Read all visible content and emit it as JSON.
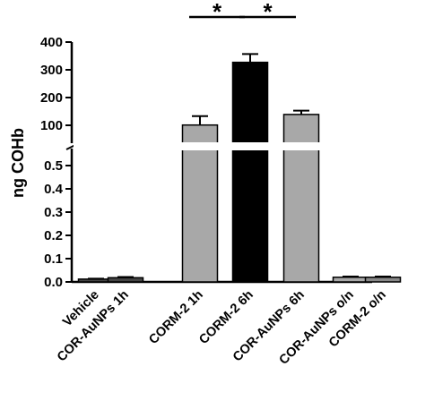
{
  "chart_data": {
    "type": "bar",
    "ylabel": "ng COHb",
    "categories": [
      "Vehicle",
      "COR-AuNPs 1h",
      "CORM-2 1h",
      "CORM-2 6h",
      "COR-AuNPs 6h",
      "COR-AuNPs o/n",
      "CORM-2 o/n"
    ],
    "values": [
      0.012,
      0.018,
      101,
      327,
      139,
      0.02,
      0.02
    ],
    "errors": [
      0.002,
      0.003,
      32,
      30,
      14,
      0.003,
      0.003
    ],
    "bar_colors": [
      "#444444",
      "#444444",
      "#a8a8a8",
      "#000000",
      "#a8a8a8",
      "#a8a8a8",
      "#888888"
    ],
    "axis_segments": [
      {
        "range": [
          0,
          0.5
        ],
        "ticks": [
          "0.0",
          "0.1",
          "0.2",
          "0.3",
          "0.4",
          "0.5"
        ]
      },
      {
        "range": [
          100,
          400
        ],
        "ticks": [
          "100",
          "200",
          "300",
          "400"
        ]
      }
    ],
    "significance": [
      {
        "from": 2,
        "to": 3,
        "label": "*"
      },
      {
        "from": 3,
        "to": 4,
        "label": "*"
      }
    ]
  }
}
